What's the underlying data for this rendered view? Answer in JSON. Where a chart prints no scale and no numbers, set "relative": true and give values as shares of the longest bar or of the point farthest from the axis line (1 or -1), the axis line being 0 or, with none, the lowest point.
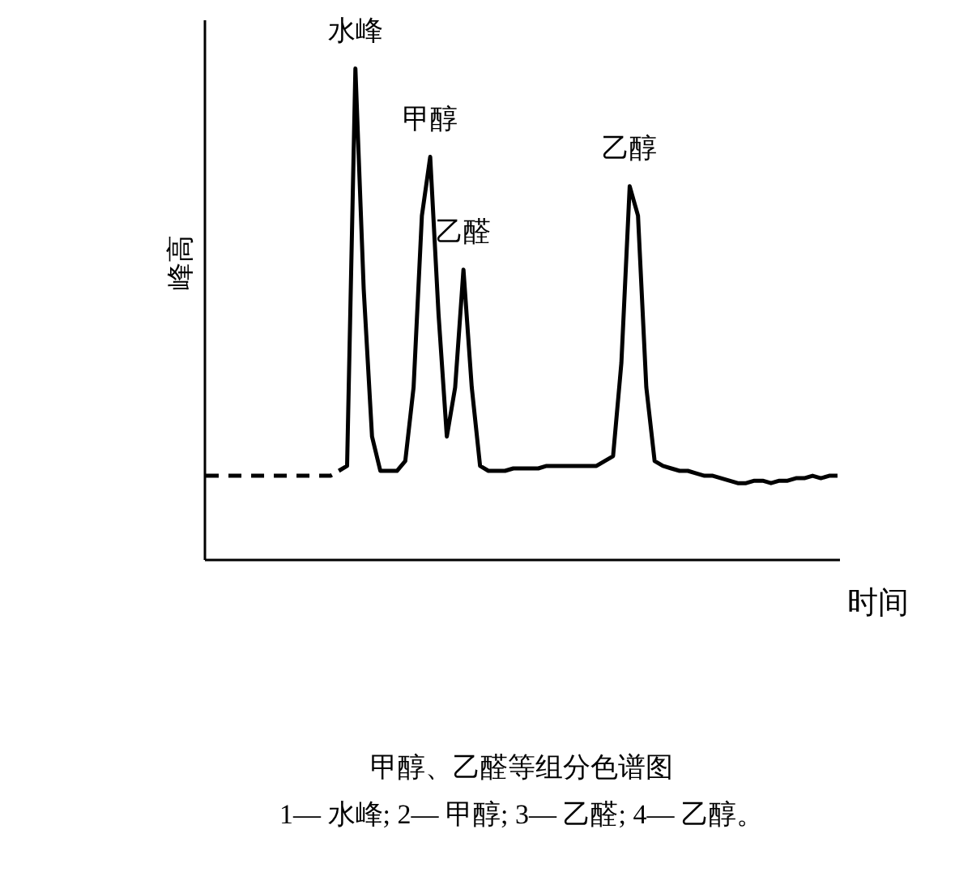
{
  "chart_data": {
    "type": "line",
    "title": "甲醇、乙醛等组分色谱图",
    "subtitle": "1— 水峰; 2— 甲醇; 3— 乙醛; 4— 乙醇。",
    "xlabel": "时间",
    "ylabel": "峰高",
    "relative": true,
    "categories": [
      null,
      null,
      null,
      null,
      null,
      null,
      null,
      null,
      null,
      null,
      null,
      null,
      null,
      null,
      null,
      null,
      null,
      null,
      null,
      null,
      null,
      null,
      null,
      null,
      null,
      null,
      null,
      null,
      null,
      null,
      null,
      null,
      null,
      null,
      null,
      null,
      null,
      null,
      null,
      null,
      null,
      null,
      null,
      null,
      null,
      null,
      null,
      null,
      null,
      null,
      null,
      null,
      null,
      null,
      null,
      null,
      null,
      null,
      null,
      null,
      null,
      null,
      null,
      null,
      null,
      null,
      null,
      null,
      null,
      null,
      null,
      null,
      null,
      null,
      null,
      null,
      null
    ],
    "series": [
      {
        "color": "#000000",
        "line_style": "dashed",
        "values": [
          0.17,
          0.17,
          0.17,
          0.17,
          0.17,
          0.17,
          0.17,
          0.17,
          0.17,
          0.17,
          0.17,
          0.17,
          0.17,
          0.17,
          0.17,
          0.17,
          0.18,
          null,
          null,
          null,
          null,
          null,
          null,
          null,
          null,
          null,
          null,
          null,
          null,
          null,
          null,
          null,
          null,
          null,
          null,
          null,
          null,
          null,
          null,
          null,
          null,
          null,
          null,
          null,
          null,
          null,
          null,
          null,
          null,
          null,
          null,
          null,
          null,
          null,
          null,
          null,
          null,
          null,
          null,
          null,
          null,
          null,
          null,
          null,
          null,
          null,
          null,
          null,
          null,
          null,
          null,
          null,
          null,
          null,
          null,
          null,
          null
        ]
      },
      {
        "color": "#000000",
        "line_style": "solid",
        "values": [
          null,
          null,
          null,
          null,
          null,
          null,
          null,
          null,
          null,
          null,
          null,
          null,
          null,
          null,
          null,
          null,
          0.18,
          0.19,
          1.0,
          0.55,
          0.25,
          0.18,
          0.18,
          0.18,
          0.2,
          0.35,
          0.7,
          0.82,
          0.5,
          0.25,
          0.35,
          0.59,
          0.35,
          0.19,
          0.18,
          0.18,
          0.18,
          0.185,
          0.185,
          0.185,
          0.185,
          0.19,
          0.19,
          0.19,
          0.19,
          0.19,
          0.19,
          0.19,
          0.2,
          0.21,
          0.4,
          0.76,
          0.7,
          0.35,
          0.2,
          0.19,
          0.185,
          0.18,
          0.18,
          0.175,
          0.17,
          0.17,
          0.165,
          0.16,
          0.155,
          0.155,
          0.16,
          0.16,
          0.155,
          0.16,
          0.16,
          0.165,
          0.165,
          0.17,
          0.165,
          0.17,
          0.17
        ]
      }
    ],
    "annotations": [
      {
        "text": "水峰",
        "y": 1.0
      },
      {
        "text": "甲醇",
        "y": 0.82
      },
      {
        "text": "乙醛",
        "y": 0.59
      },
      {
        "text": "乙醇",
        "y": 0.76
      }
    ]
  }
}
